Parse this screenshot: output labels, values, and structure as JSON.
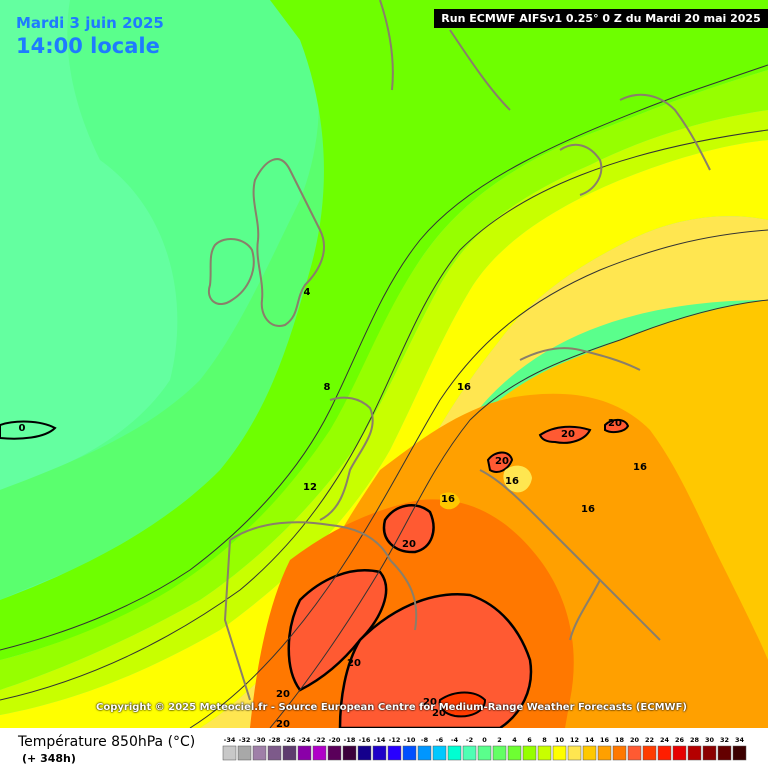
{
  "header": {
    "date": "Mardi 3 juin 2025",
    "time": "14:00 locale",
    "run": "Run ECMWF AIFSv1 0.25° 0 Z du Mardi 20 mai 2025"
  },
  "copyright": "Copyright © 2025 Meteociel.fr - Source European Centre for Medium-Range Weather Forecasts (ECMWF)",
  "footer": {
    "title": "Température 850hPa (°C)",
    "hours": "(+ 348h)"
  },
  "legend": {
    "values": [
      "-34",
      "-32",
      "-30",
      "-28",
      "-26",
      "-24",
      "-22",
      "-20",
      "-18",
      "-16",
      "-14",
      "-12",
      "-10",
      "-8",
      "-6",
      "-4",
      "-2",
      "0",
      "2",
      "4",
      "6",
      "8",
      "10",
      "12",
      "14",
      "16",
      "18",
      "20",
      "22",
      "24",
      "26",
      "28",
      "30",
      "32",
      "34"
    ],
    "colors": [
      "#c8c8c8",
      "#a8a8a8",
      "#9f7fa8",
      "#7d5a8a",
      "#5e3c6e",
      "#8a00a8",
      "#b000c8",
      "#5a005a",
      "#3c003c",
      "#14008c",
      "#1e00c8",
      "#2800ff",
      "#0050ff",
      "#0096ff",
      "#00c8ff",
      "#00ffd2",
      "#50ffb4",
      "#5aff8c",
      "#64ff64",
      "#6eff32",
      "#96ff00",
      "#c8ff00",
      "#ffff00",
      "#ffe650",
      "#ffc800",
      "#ffa000",
      "#ff7800",
      "#ff5a32",
      "#ff3c00",
      "#ff1e00",
      "#e60000",
      "#b40000",
      "#8c0000",
      "#640000",
      "#3c0000"
    ]
  },
  "map_labels": [
    "4",
    "8",
    "12",
    "16",
    "20",
    "20",
    "20",
    "20",
    "16",
    "16",
    "16",
    "16",
    "20",
    "20",
    "20",
    "20",
    "20",
    "0"
  ]
}
